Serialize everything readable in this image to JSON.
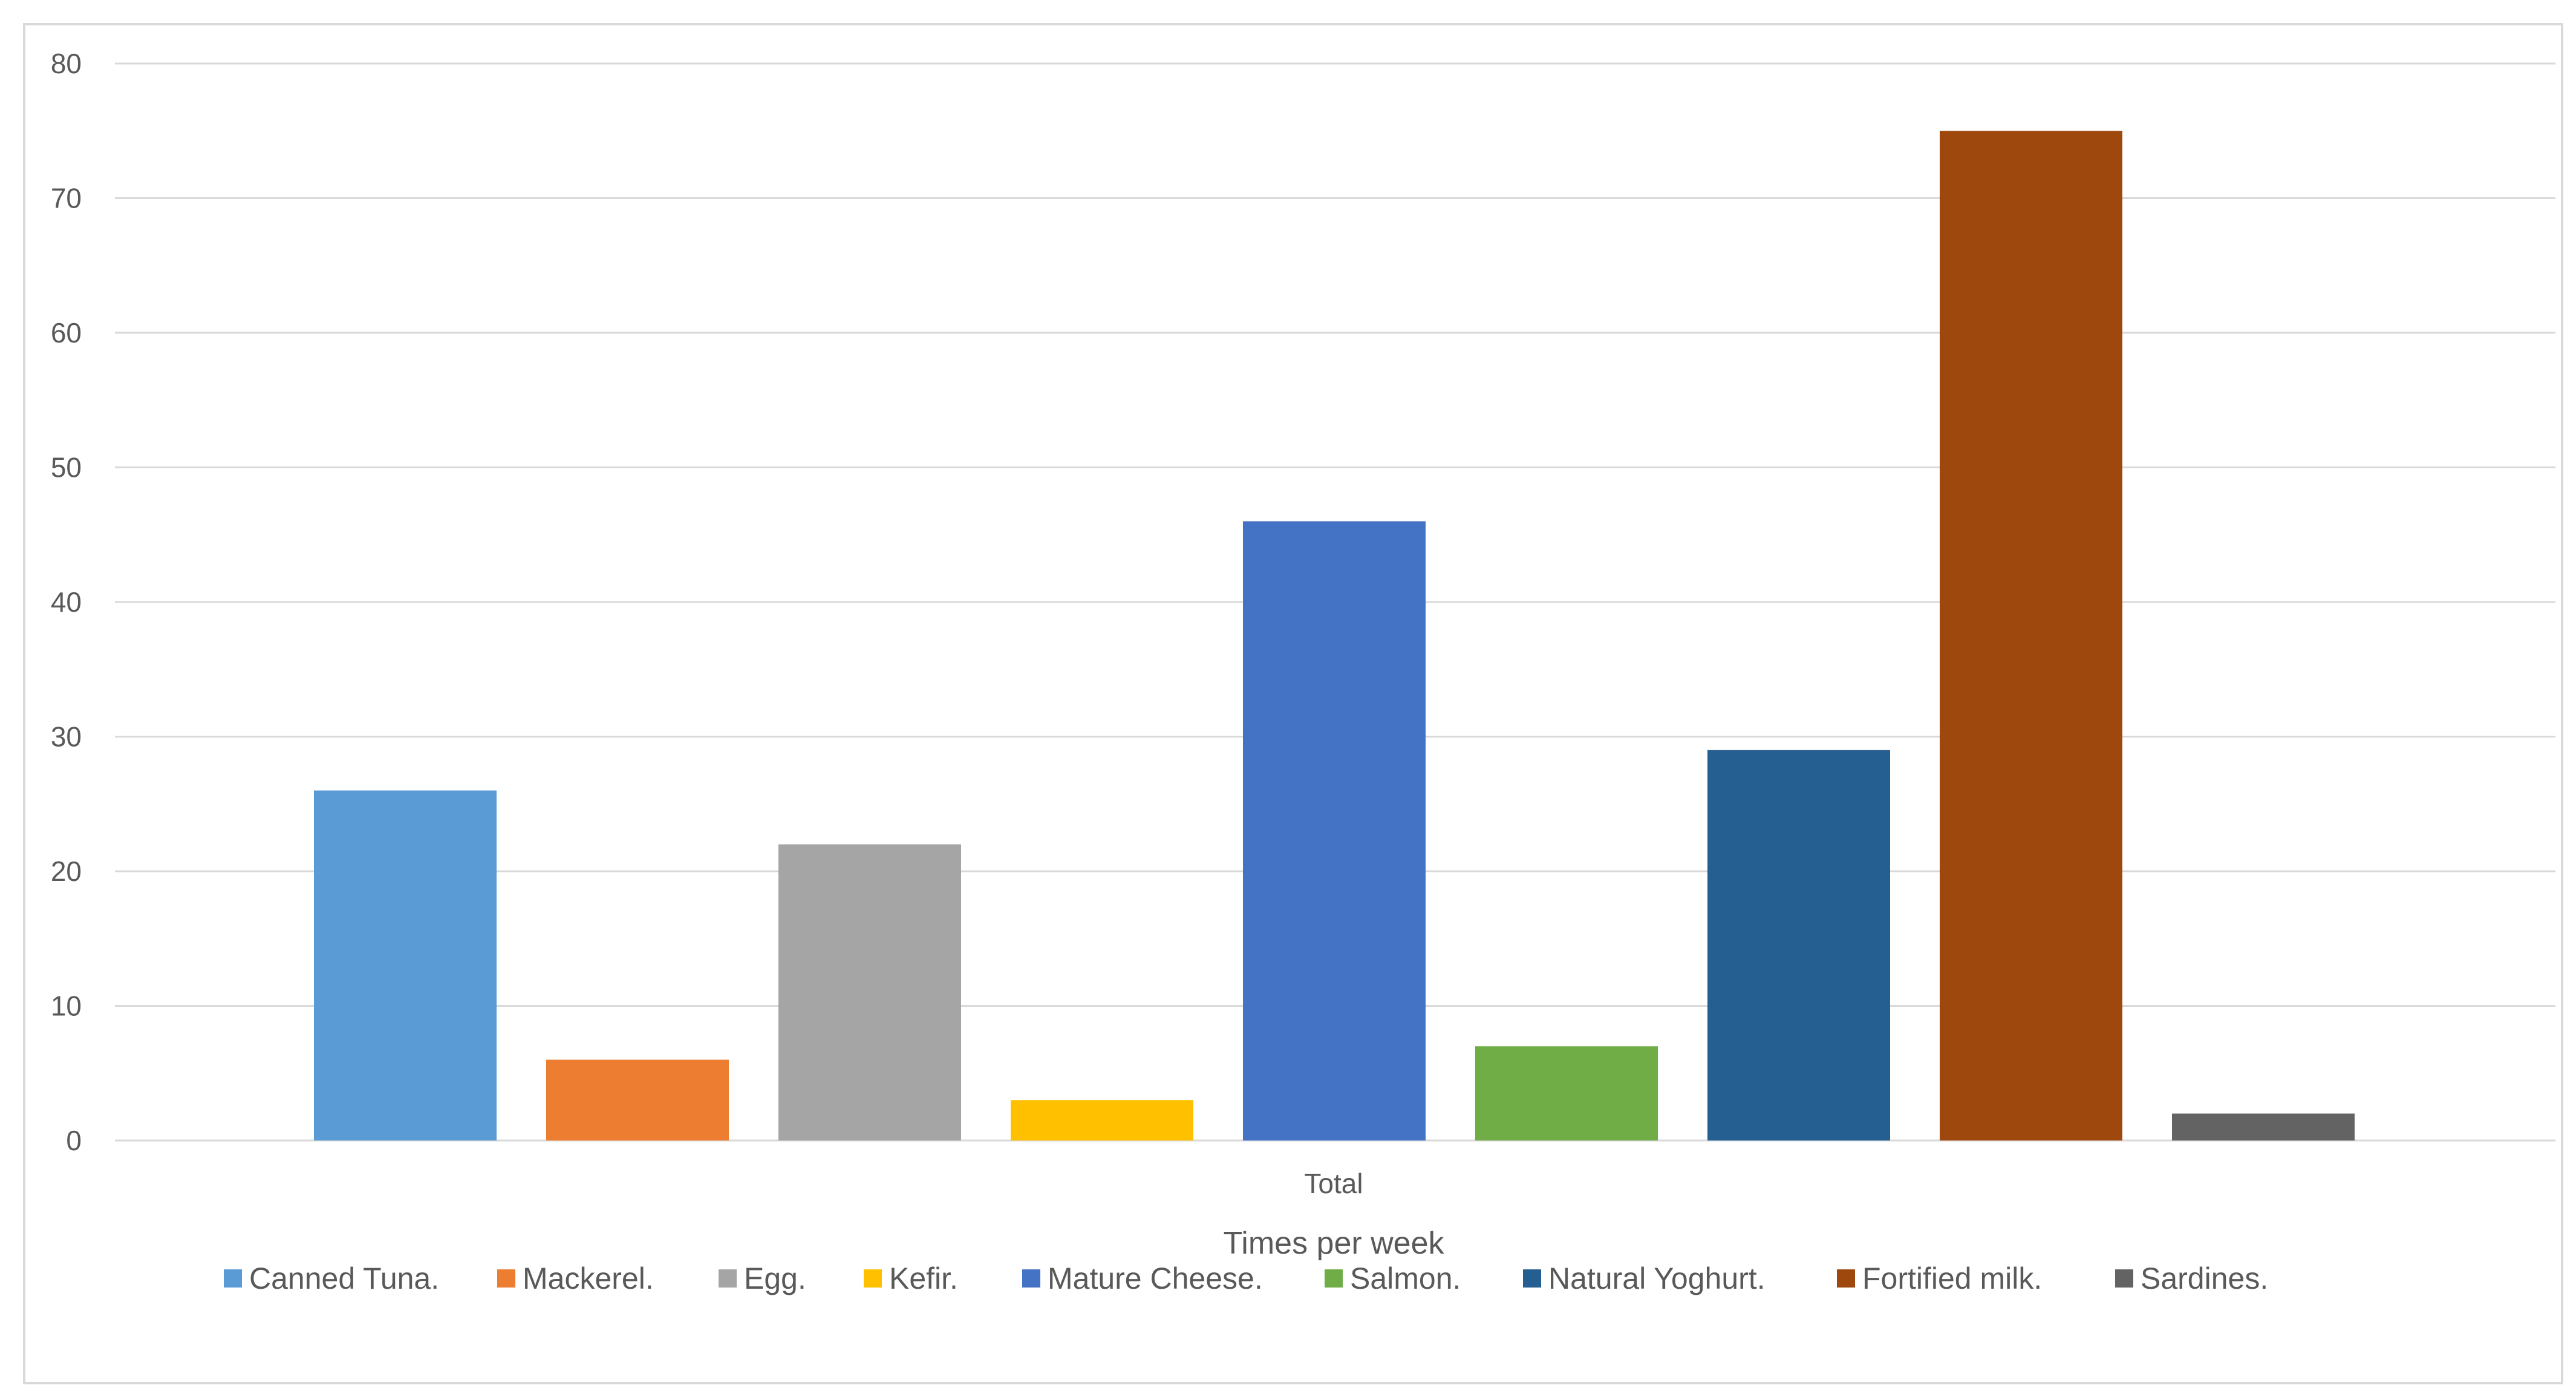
{
  "chart_data": {
    "type": "bar",
    "categories": [
      "Total"
    ],
    "series": [
      {
        "name": "Canned Tuna.",
        "values": [
          26
        ],
        "color": "#5B9BD5"
      },
      {
        "name": "Mackerel.",
        "values": [
          6
        ],
        "color": "#ED7D31"
      },
      {
        "name": "Egg.",
        "values": [
          22
        ],
        "color": "#A5A5A5"
      },
      {
        "name": "Kefir.",
        "values": [
          3
        ],
        "color": "#FFC000"
      },
      {
        "name": "Mature Cheese.",
        "values": [
          46
        ],
        "color": "#4472C4"
      },
      {
        "name": "Salmon.",
        "values": [
          7
        ],
        "color": "#70AD47"
      },
      {
        "name": "Natural Yoghurt.",
        "values": [
          29
        ],
        "color": "#255E91"
      },
      {
        "name": "Fortified milk.",
        "values": [
          75
        ],
        "color": "#9E480E"
      },
      {
        "name": "Sardines.",
        "values": [
          2
        ],
        "color": "#636363"
      }
    ],
    "title": "",
    "xlabel": "Times per week",
    "ylabel": "",
    "ylim": [
      0,
      80
    ],
    "yticks": [
      0,
      10,
      20,
      30,
      40,
      50,
      60,
      70,
      80
    ],
    "grid": true,
    "legend_position": "bottom"
  }
}
